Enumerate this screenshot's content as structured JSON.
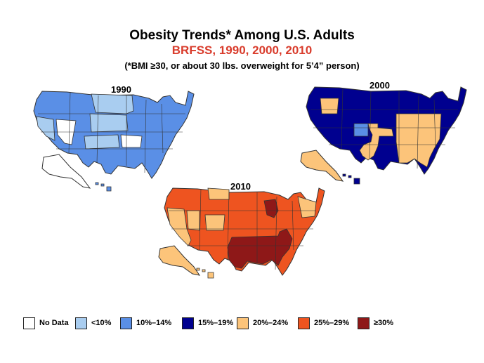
{
  "title": {
    "main": "Obesity Trends* Among U.S. Adults",
    "sub": "BRFSS, 1990, 2000, 2010",
    "note": "(*BMI ≥30, or about 30 lbs. overweight for 5’4” person)"
  },
  "maps": [
    {
      "year": "1990",
      "dominant_category": "10%–14%",
      "secondary_category": "<10%"
    },
    {
      "year": "2000",
      "dominant_category": "15%–19%",
      "secondary_category": "20%–24%"
    },
    {
      "year": "2010",
      "dominant_category": "25%–29%",
      "secondary_category": "≥30%"
    }
  ],
  "legend": [
    {
      "label": "No Data",
      "color": "#ffffff"
    },
    {
      "label": "<10%",
      "color": "#a9cdf0"
    },
    {
      "label": "10%–14%",
      "color": "#5a8fe6"
    },
    {
      "label": "15%–19%",
      "color": "#00008f"
    },
    {
      "label": "20%–24%",
      "color": "#fcc47a"
    },
    {
      "label": "25%–29%",
      "color": "#ee5420"
    },
    {
      "label": "≥30%",
      "color": "#8e1818"
    }
  ]
}
